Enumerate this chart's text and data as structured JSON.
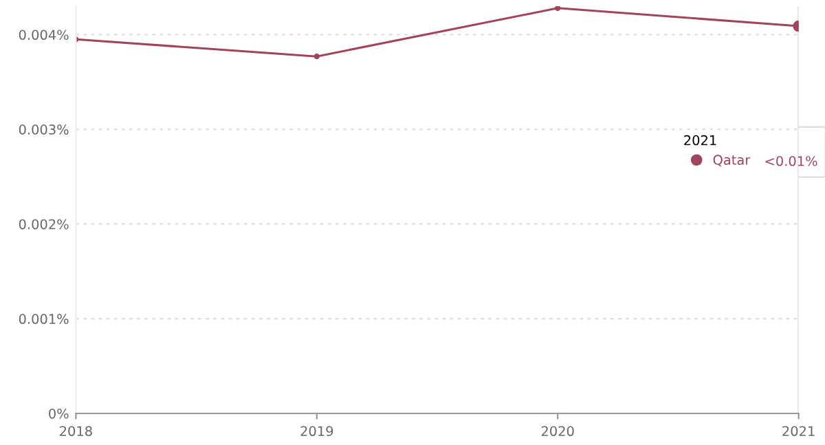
{
  "chart_data": {
    "type": "line",
    "x": [
      2018,
      2019,
      2020,
      2021
    ],
    "series": [
      {
        "name": "Qatar",
        "color": "#a0455c",
        "values": [
          0.00395,
          0.00377,
          0.00428,
          0.00409
        ]
      }
    ],
    "xlim": [
      2018,
      2021
    ],
    "xticks": [
      2018,
      2019,
      2020,
      2021
    ],
    "ylim": [
      0,
      0.0043
    ],
    "yticks": [
      {
        "value": 0,
        "label": "0%"
      },
      {
        "value": 0.001,
        "label": "0.001%"
      },
      {
        "value": 0.002,
        "label": "0.002%"
      },
      {
        "value": 0.003,
        "label": "0.003%"
      },
      {
        "value": 0.004,
        "label": "0.004%"
      }
    ],
    "grid": "y",
    "marker": "circle",
    "line_style": "solid",
    "legend": "right",
    "legend_title": "2021",
    "ref_lines": [
      {
        "axis": "x",
        "value": 2021,
        "color": "#dddddd"
      }
    ],
    "annotations": [
      "<0.01%"
    ]
  }
}
